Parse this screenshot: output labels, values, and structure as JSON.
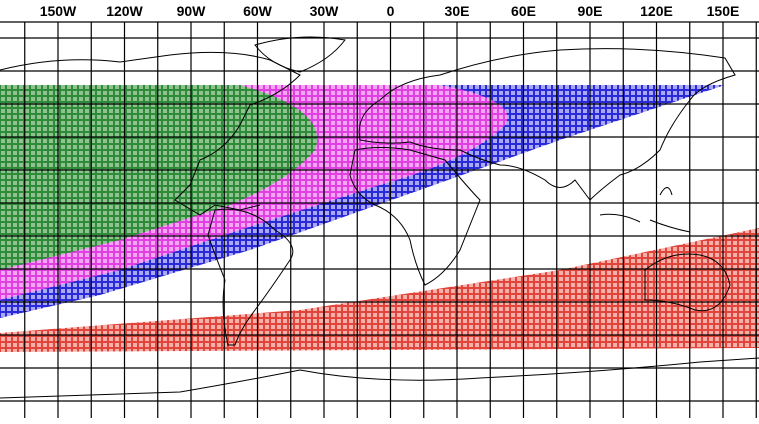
{
  "map": {
    "longitude_labels": [
      "150W",
      "120W",
      "90W",
      "60W",
      "30W",
      "0",
      "30E",
      "60E",
      "90E",
      "120E",
      "150E"
    ]
  }
}
